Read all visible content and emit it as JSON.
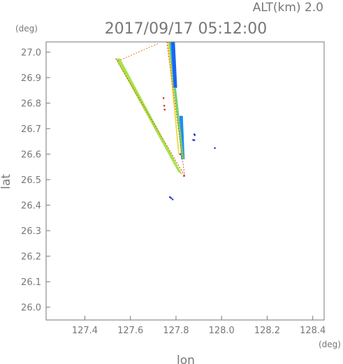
{
  "chart_data": {
    "type": "scatter",
    "title": "2017/09/17 05:12:00",
    "altitude_label": "ALT(km) 2.0",
    "xlabel": "lon",
    "ylabel": "lat",
    "x_unit": "(deg)",
    "y_unit": "(deg)",
    "xlim": [
      127.23,
      128.45
    ],
    "ylim": [
      25.95,
      27.04
    ],
    "x_ticks": [
      "127.4",
      "127.6",
      "127.8",
      "128.0",
      "128.2",
      "128.4"
    ],
    "y_ticks": [
      "26.0",
      "26.1",
      "26.2",
      "26.3",
      "26.4",
      "26.5",
      "26.6",
      "26.7",
      "26.8",
      "26.9",
      "27.0"
    ],
    "grid": false,
    "features": [
      {
        "kind": "band",
        "color": "#a6e34a",
        "points": [
          [
            127.535,
            26.975
          ],
          [
            127.555,
            26.975
          ],
          [
            127.828,
            26.52
          ],
          [
            127.81,
            26.53
          ]
        ]
      },
      {
        "kind": "band",
        "color": "#1a64f2",
        "points": [
          [
            127.775,
            27.04
          ],
          [
            127.795,
            27.04
          ],
          [
            127.805,
            26.86
          ],
          [
            127.79,
            26.86
          ]
        ]
      },
      {
        "kind": "band",
        "color": "#33c2c8",
        "points": [
          [
            127.77,
            27.04
          ],
          [
            127.778,
            27.04
          ],
          [
            127.79,
            26.86
          ],
          [
            127.785,
            26.86
          ]
        ]
      },
      {
        "kind": "band",
        "color": "#1f8cf0",
        "points": [
          [
            127.815,
            26.75
          ],
          [
            127.83,
            26.75
          ],
          [
            127.838,
            26.58
          ],
          [
            127.822,
            26.58
          ]
        ]
      },
      {
        "kind": "band",
        "color": "#ecd93a",
        "points": [
          [
            127.762,
            27.04
          ],
          [
            127.77,
            27.04
          ],
          [
            127.815,
            26.6
          ],
          [
            127.81,
            26.6
          ]
        ]
      },
      {
        "kind": "band",
        "color": "#6ed36a",
        "points": [
          [
            127.79,
            26.86
          ],
          [
            127.8,
            26.86
          ],
          [
            127.835,
            26.58
          ],
          [
            127.825,
            26.58
          ]
        ]
      },
      {
        "kind": "line",
        "color": "#e04a1a",
        "points": [
          [
            127.535,
            26.975
          ],
          [
            127.838,
            26.515
          ]
        ]
      },
      {
        "kind": "line",
        "color": "#e04a1a",
        "points": [
          [
            127.76,
            27.04
          ],
          [
            127.838,
            26.515
          ]
        ]
      },
      {
        "kind": "line",
        "color": "#e07a1a",
        "points": [
          [
            127.545,
            26.965
          ],
          [
            127.725,
            27.035
          ]
        ]
      },
      {
        "kind": "dots",
        "color": "#cc1a1a",
        "points": [
          [
            127.745,
            26.82
          ],
          [
            127.748,
            26.79
          ],
          [
            127.75,
            26.775
          ],
          [
            127.818,
            26.6
          ],
          [
            127.835,
            26.515
          ]
        ]
      },
      {
        "kind": "dots",
        "color": "#1a2ad0",
        "points": [
          [
            127.88,
            26.678
          ],
          [
            127.882,
            26.675
          ],
          [
            127.875,
            26.656
          ],
          [
            127.88,
            26.655
          ],
          [
            127.97,
            26.624
          ],
          [
            127.773,
            26.432
          ],
          [
            127.778,
            26.428
          ],
          [
            127.785,
            26.423
          ]
        ]
      }
    ]
  }
}
